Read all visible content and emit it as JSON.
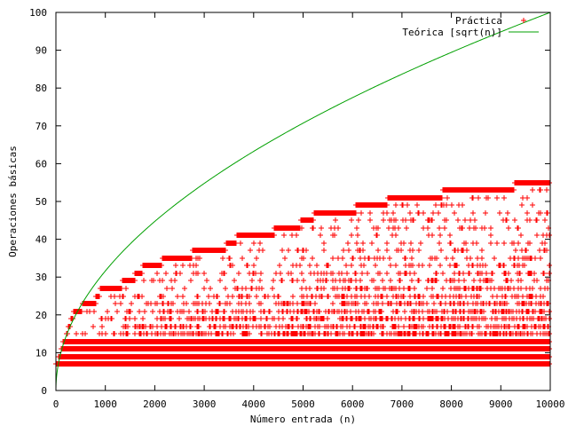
{
  "chart_data": {
    "type": "scatter",
    "title": "",
    "xlabel": "Número entrada (n)",
    "ylabel": "Operaciones básicas",
    "xlim": [
      0,
      10000
    ],
    "ylim": [
      0,
      100
    ],
    "x_ticks": [
      0,
      1000,
      2000,
      3000,
      4000,
      5000,
      6000,
      7000,
      8000,
      9000,
      10000
    ],
    "y_ticks": [
      0,
      10,
      20,
      30,
      40,
      50,
      60,
      70,
      80,
      90,
      100
    ],
    "x_tick_labels": [
      "0",
      "1000",
      "2000",
      "3000",
      "4000",
      "5000",
      "6000",
      "7000",
      "8000",
      "9000",
      "10000"
    ],
    "y_tick_labels": [
      "0",
      "10",
      "20",
      "30",
      "40",
      "50",
      "60",
      "70",
      "80",
      "90",
      "100"
    ],
    "grid": false,
    "legend_position": "top-right",
    "series": [
      {
        "name": "Práctica",
        "style": "points",
        "marker": "plus",
        "color": "#ff0000",
        "upper_envelope": [
          {
            "x_start": 0,
            "x_end": 60,
            "y": 7
          },
          {
            "x_start": 60,
            "x_end": 100,
            "y": 9
          },
          {
            "x_start": 100,
            "x_end": 150,
            "y": 11
          },
          {
            "x_start": 150,
            "x_end": 200,
            "y": 13
          },
          {
            "x_start": 200,
            "x_end": 250,
            "y": 15
          },
          {
            "x_start": 250,
            "x_end": 300,
            "y": 17
          },
          {
            "x_start": 300,
            "x_end": 360,
            "y": 19
          },
          {
            "x_start": 360,
            "x_end": 530,
            "y": 21
          },
          {
            "x_start": 530,
            "x_end": 800,
            "y": 23
          },
          {
            "x_start": 800,
            "x_end": 900,
            "y": 25
          },
          {
            "x_start": 900,
            "x_end": 1340,
            "y": 27
          },
          {
            "x_start": 1340,
            "x_end": 1600,
            "y": 29
          },
          {
            "x_start": 1600,
            "x_end": 1750,
            "y": 31
          },
          {
            "x_start": 1750,
            "x_end": 2150,
            "y": 33
          },
          {
            "x_start": 2150,
            "x_end": 2750,
            "y": 35
          },
          {
            "x_start": 2750,
            "x_end": 3450,
            "y": 37
          },
          {
            "x_start": 3450,
            "x_end": 3650,
            "y": 39
          },
          {
            "x_start": 3650,
            "x_end": 4420,
            "y": 41
          },
          {
            "x_start": 4420,
            "x_end": 4950,
            "y": 43
          },
          {
            "x_start": 4950,
            "x_end": 5220,
            "y": 45
          },
          {
            "x_start": 5220,
            "x_end": 6070,
            "y": 47
          },
          {
            "x_start": 6070,
            "x_end": 6720,
            "y": 49
          },
          {
            "x_start": 6720,
            "x_end": 7830,
            "y": 51
          },
          {
            "x_start": 7830,
            "x_end": 9280,
            "y": 53
          },
          {
            "x_start": 9280,
            "x_end": 10000,
            "y": 55
          }
        ],
        "dense_levels": [
          7,
          9,
          11,
          13
        ],
        "sparse_levels": [
          15,
          17,
          19,
          21,
          23,
          25,
          27,
          29,
          31,
          33,
          35,
          37,
          39,
          41,
          43,
          45,
          47,
          49,
          51,
          53,
          55
        ]
      },
      {
        "name": "Teórica [sqrt(n)]",
        "style": "line",
        "function": "sqrt(n)",
        "x_range": [
          0,
          10000
        ],
        "color": "#00a000"
      }
    ]
  }
}
